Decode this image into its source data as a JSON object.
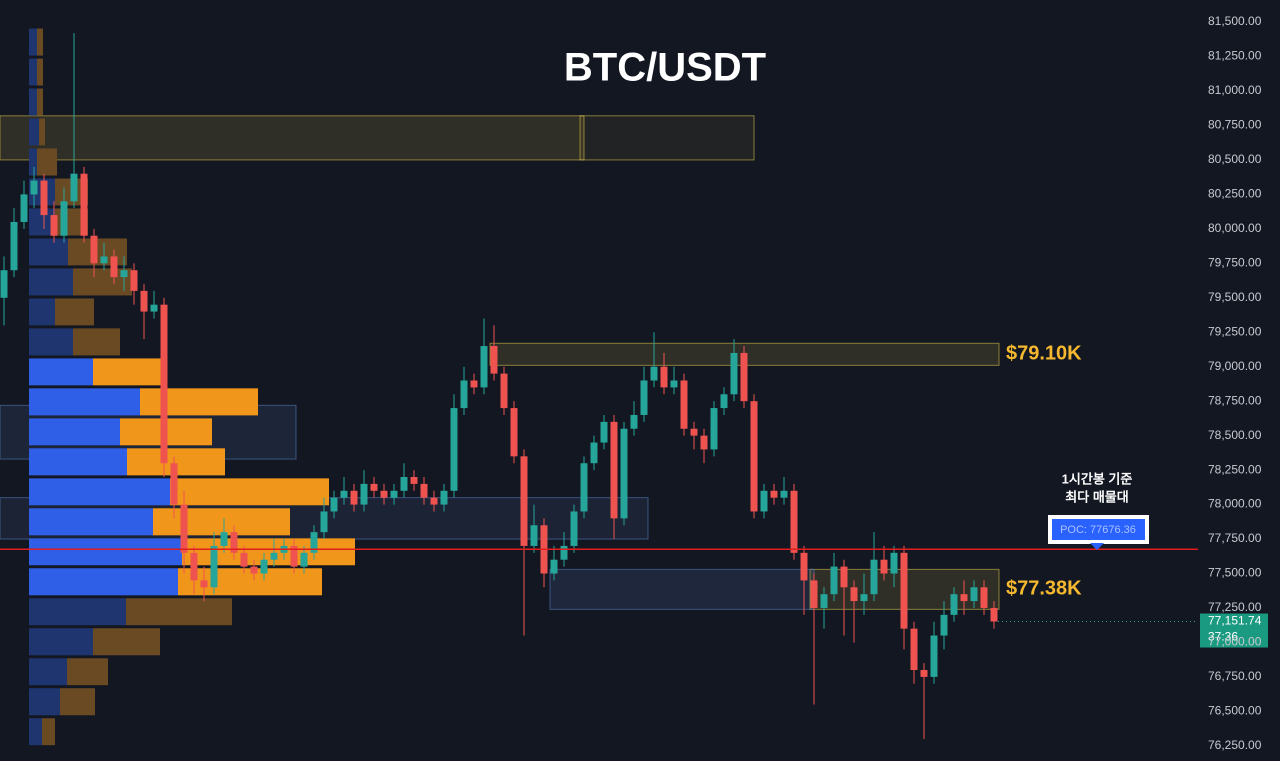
{
  "chart_data": {
    "type": "candlestick",
    "title": "BTC/USDT",
    "ylim": [
      76140,
      81660
    ],
    "yticks": [
      {
        "value": 81500,
        "label": "81,500.00"
      },
      {
        "value": 81250,
        "label": "81,250.00"
      },
      {
        "value": 81000,
        "label": "81,000.00"
      },
      {
        "value": 80750,
        "label": "80,750.00"
      },
      {
        "value": 80500,
        "label": "80,500.00"
      },
      {
        "value": 80250,
        "label": "80,250.00"
      },
      {
        "value": 80000,
        "label": "80,000.00"
      },
      {
        "value": 79750,
        "label": "79,750.00"
      },
      {
        "value": 79500,
        "label": "79,500.00"
      },
      {
        "value": 79250,
        "label": "79,250.00"
      },
      {
        "value": 79000,
        "label": "79,000.00"
      },
      {
        "value": 78750,
        "label": "78,750.00"
      },
      {
        "value": 78500,
        "label": "78,500.00"
      },
      {
        "value": 78250,
        "label": "78,250.00"
      },
      {
        "value": 78000,
        "label": "78,000.00"
      },
      {
        "value": 77750,
        "label": "77,750.00"
      },
      {
        "value": 77500,
        "label": "77,500.00"
      },
      {
        "value": 77250,
        "label": "77,250.00"
      },
      {
        "value": 77000,
        "label": "77,000.00"
      },
      {
        "value": 76750,
        "label": "76,750.00"
      },
      {
        "value": 76500,
        "label": "76,500.00"
      },
      {
        "value": 76250,
        "label": "76,250.00"
      }
    ],
    "up_color": "#26a69a",
    "down_color": "#ef5350",
    "candles": {
      "open": [
        79500,
        79700,
        80050,
        80250,
        80350,
        80100,
        79950,
        80200,
        80400,
        79950,
        79750,
        79800,
        79650,
        79700,
        79550,
        79400,
        79450,
        78300,
        78000,
        77650,
        77450,
        77400,
        77700,
        77800,
        77650,
        77550,
        77500,
        77600,
        77650,
        77700,
        77550,
        77650,
        77800,
        77950,
        78050,
        78100,
        78000,
        78150,
        78100,
        78050,
        78100,
        78200,
        78150,
        78050,
        78000,
        78100,
        78700,
        78900,
        78850,
        79150,
        78950,
        78700,
        78350,
        77700,
        77850,
        77500,
        77600,
        77700,
        77950,
        78300,
        78450,
        78600,
        77900,
        78550,
        78650,
        78900,
        79000,
        78850,
        78900,
        78550,
        78500,
        78400,
        78700,
        78800,
        79100,
        78750,
        77950,
        78100,
        78050,
        78100,
        77650,
        77450,
        77250,
        77350,
        77550,
        77400,
        77300,
        77350,
        77600,
        77500,
        77650,
        77100,
        76800,
        76750,
        77050,
        77200,
        77350,
        77300,
        77400,
        77250
      ],
      "high": [
        79800,
        80150,
        80350,
        80450,
        80400,
        80200,
        80300,
        81420,
        80450,
        80000,
        79900,
        79850,
        79800,
        79750,
        79600,
        79550,
        79500,
        78350,
        78100,
        77700,
        77550,
        77800,
        77900,
        77850,
        77700,
        77600,
        77650,
        77750,
        77750,
        77750,
        77700,
        77850,
        78050,
        78100,
        78200,
        78150,
        78250,
        78200,
        78150,
        78150,
        78300,
        78250,
        78200,
        78100,
        78150,
        78800,
        79000,
        78950,
        79350,
        79300,
        79000,
        78750,
        78400,
        78000,
        77900,
        77700,
        77800,
        78000,
        78350,
        78500,
        78650,
        78650,
        78600,
        78750,
        79000,
        79250,
        79100,
        79000,
        78950,
        78600,
        78550,
        78750,
        78850,
        79200,
        79150,
        78800,
        78150,
        78150,
        78200,
        78150,
        77700,
        77500,
        77400,
        77650,
        77600,
        77450,
        77500,
        77800,
        77700,
        77700,
        77700,
        77150,
        76850,
        77150,
        77300,
        77400,
        77450,
        77450,
        77450,
        77300
      ],
      "low": [
        79300,
        79650,
        80000,
        80150,
        80000,
        79900,
        79900,
        80150,
        79900,
        79650,
        79700,
        79600,
        79550,
        79450,
        79200,
        79350,
        78200,
        77900,
        77500,
        77350,
        77300,
        77350,
        77650,
        77600,
        77500,
        77450,
        77450,
        77550,
        77600,
        77500,
        77500,
        77600,
        77750,
        77900,
        78000,
        77950,
        77950,
        78050,
        78000,
        78000,
        78050,
        78100,
        78000,
        77950,
        77950,
        78050,
        78650,
        78800,
        78800,
        78900,
        78650,
        78300,
        77050,
        77650,
        77400,
        77450,
        77550,
        77650,
        77900,
        78250,
        78400,
        77750,
        77850,
        78500,
        78600,
        78850,
        78800,
        78800,
        78500,
        78400,
        78300,
        78350,
        78650,
        78750,
        78700,
        77900,
        77900,
        78000,
        78000,
        77600,
        77200,
        76550,
        77100,
        77300,
        77050,
        77000,
        77200,
        77300,
        77450,
        77400,
        76950,
        76700,
        76300,
        76700,
        76950,
        77150,
        77200,
        77250,
        77200,
        77100
      ],
      "close": [
        79700,
        80050,
        80250,
        80350,
        80100,
        79950,
        80200,
        80400,
        79950,
        79750,
        79800,
        79650,
        79700,
        79550,
        79400,
        79450,
        78300,
        78000,
        77650,
        77450,
        77400,
        77700,
        77800,
        77650,
        77550,
        77500,
        77600,
        77650,
        77700,
        77550,
        77650,
        77800,
        77950,
        78050,
        78100,
        78000,
        78150,
        78100,
        78050,
        78100,
        78200,
        78150,
        78050,
        78000,
        78100,
        78700,
        78900,
        78850,
        79150,
        78950,
        78700,
        78350,
        77700,
        77850,
        77500,
        77600,
        77700,
        77950,
        78300,
        78450,
        78600,
        77900,
        78550,
        78650,
        78900,
        79000,
        78850,
        78900,
        78550,
        78500,
        78400,
        78700,
        78800,
        79100,
        78750,
        77950,
        78100,
        78050,
        78100,
        77650,
        77450,
        77250,
        77350,
        77550,
        77400,
        77300,
        77350,
        77600,
        77500,
        77650,
        77100,
        76800,
        76750,
        77050,
        77200,
        77350,
        77300,
        77400,
        77250,
        77151.74
      ]
    },
    "volume_profile": {
      "bins": [
        81464,
        81246,
        81029,
        80811,
        80594,
        80376,
        80159,
        79941,
        79724,
        79506,
        79289,
        79071,
        78854,
        78636,
        78419,
        78201,
        77984,
        77766,
        77549,
        77331,
        77114,
        76896,
        76679,
        76461,
        76244
      ],
      "up": [
        8,
        8,
        8,
        10,
        8,
        26,
        26,
        39,
        44,
        26,
        44,
        64,
        111,
        91,
        98,
        141,
        124,
        153,
        149,
        97,
        64,
        38,
        31,
        13
      ],
      "down": [
        6,
        6,
        6,
        6,
        20,
        33,
        33,
        59,
        59,
        39,
        47,
        70,
        118,
        92,
        98,
        159,
        137,
        173,
        144,
        106,
        67,
        41,
        35,
        13
      ],
      "value_area": [
        77331,
        79071
      ],
      "up_color": "#2f5fe6",
      "down_color": "#f0961a",
      "up_dim_color": "#1f3570",
      "down_dim_color": "#6a4a22"
    },
    "zones": [
      {
        "low": 80500,
        "high": 80820,
        "start": 0,
        "end": 58,
        "color": "#e0c84a",
        "opacity": 0.14
      },
      {
        "low": 80500,
        "high": 80820,
        "start": 58,
        "end": 75,
        "color": "#e0c84a",
        "opacity": 0.07
      },
      {
        "low": 79010,
        "high": 79170,
        "start": 49,
        "end": 99.5,
        "color": "#e0c84a",
        "opacity": 0.14,
        "label": "$79.10K"
      },
      {
        "low": 77240,
        "high": 77530,
        "start": 81,
        "end": 99.5,
        "color": "#e0c84a",
        "opacity": 0.14,
        "label": "$77.38K"
      },
      {
        "low": 77240,
        "high": 77530,
        "start": 55,
        "end": 81,
        "color": "#5b7fc7",
        "opacity": 0.16
      },
      {
        "low": 77750,
        "high": 78050,
        "start": 0,
        "end": 64.4,
        "color": "#5b7fc7",
        "opacity": 0.12
      },
      {
        "low": 78330,
        "high": 78720,
        "start": 0,
        "end": 29.2,
        "color": "#5b7fc7",
        "opacity": 0.14
      }
    ],
    "poc": {
      "value": 77676.36,
      "label": "POC: 77676.36",
      "color": "#e01e1e"
    },
    "note": [
      "1시간봉 기준",
      "최다 매물대"
    ],
    "last_price": {
      "value": 77151.74,
      "label": "77,151.74"
    },
    "countdown": "37:36"
  }
}
